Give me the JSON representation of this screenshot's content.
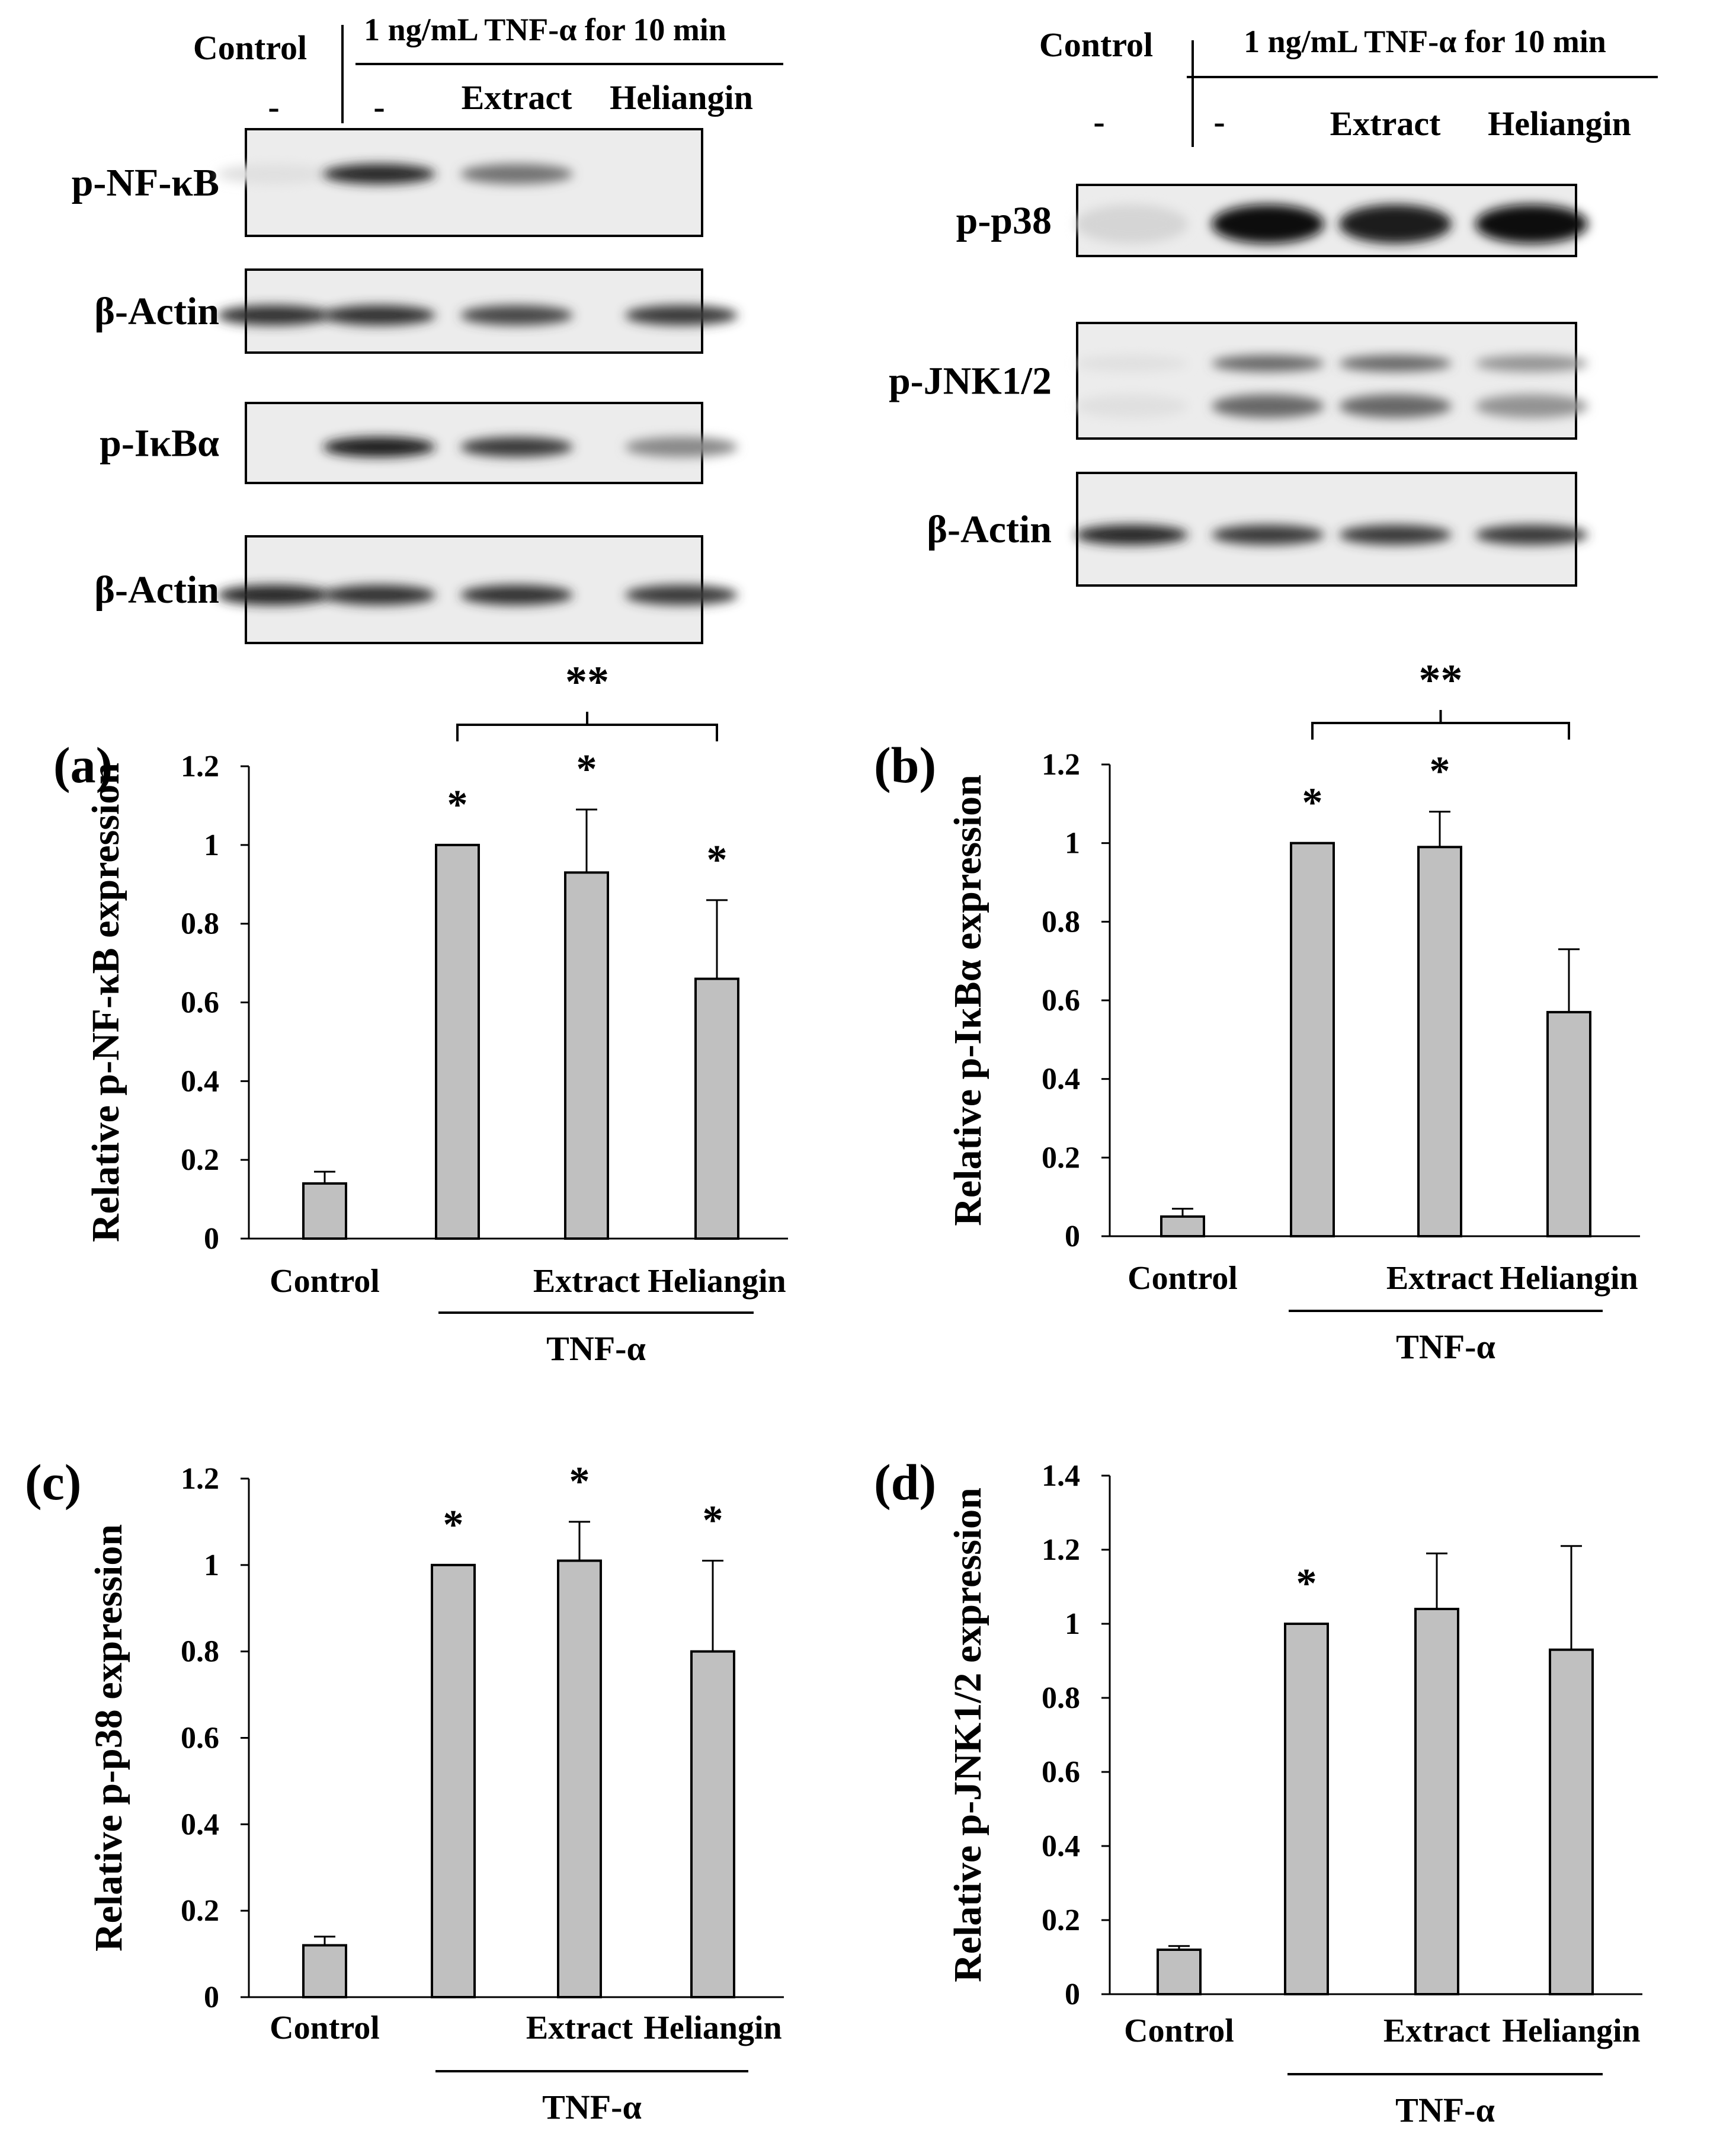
{
  "blots": {
    "left": {
      "group_header": {
        "control": "Control",
        "treatment": "1 ng/mL TNF-α for 10 min"
      },
      "lane_labels": [
        "-",
        "-",
        "Extract",
        "Heliangin"
      ],
      "rows": [
        {
          "label": "p-NF-κB",
          "bands": [
            0.05,
            0.9,
            0.55,
            0.0
          ],
          "style": "upper"
        },
        {
          "label": "β-Actin",
          "bands": [
            0.85,
            0.85,
            0.75,
            0.8
          ],
          "style": "mid"
        },
        {
          "label": "p-IκBα",
          "bands": [
            0.0,
            0.95,
            0.8,
            0.45
          ],
          "style": "mid"
        },
        {
          "label": "β-Actin",
          "bands": [
            0.9,
            0.85,
            0.85,
            0.8
          ],
          "style": "mid"
        }
      ]
    },
    "right": {
      "group_header": {
        "control": "Control",
        "treatment": "1 ng/mL TNF-α for 10 min"
      },
      "lane_labels": [
        "-",
        "-",
        "Extract",
        "Heliangin"
      ],
      "rows": [
        {
          "label": "p-p38",
          "bands": [
            0.1,
            1.0,
            0.95,
            1.0
          ],
          "style": "full"
        },
        {
          "label": "p-JNK1/2",
          "bands": [
            0.05,
            0.6,
            0.6,
            0.4
          ],
          "style": "double"
        },
        {
          "label": "β-Actin",
          "bands": [
            0.9,
            0.8,
            0.8,
            0.8
          ],
          "style": "mid"
        }
      ]
    }
  },
  "chart_data": [
    {
      "type": "bar",
      "panel_label": "(a)",
      "ylabel": "Relative p-NF-κB expression",
      "categories": [
        "Control",
        "",
        "Extract",
        "Heliangin"
      ],
      "values": [
        0.14,
        1.0,
        0.93,
        0.66
      ],
      "errors": [
        0.03,
        0.0,
        0.16,
        0.2
      ],
      "stars": [
        "",
        "*",
        "*",
        "*"
      ],
      "bracket": {
        "from": 1,
        "to": 3,
        "label": "**"
      },
      "group_label": "TNF-α",
      "ylim": [
        0,
        1.2
      ],
      "yticks": [
        "0",
        "0.2",
        "0.4",
        "0.6",
        "0.8",
        "1",
        "1.2"
      ],
      "bar_color": "#c0c0c0"
    },
    {
      "type": "bar",
      "panel_label": "(b)",
      "ylabel": "Relative p-IκBα expression",
      "categories": [
        "Control",
        "",
        "Extract",
        "Heliangin"
      ],
      "values": [
        0.05,
        1.0,
        0.99,
        0.57
      ],
      "errors": [
        0.02,
        0.0,
        0.09,
        0.16
      ],
      "stars": [
        "",
        "*",
        "*",
        ""
      ],
      "bracket": {
        "from": 1,
        "to": 3,
        "label": "**"
      },
      "group_label": "TNF-α",
      "ylim": [
        0,
        1.2
      ],
      "yticks": [
        "0",
        "0.2",
        "0.4",
        "0.6",
        "0.8",
        "1",
        "1.2"
      ],
      "bar_color": "#c0c0c0"
    },
    {
      "type": "bar",
      "panel_label": "(c)",
      "ylabel": "Relative p-p38 expression",
      "categories": [
        "Control",
        "",
        "Extract",
        "Heliangin"
      ],
      "values": [
        0.12,
        1.0,
        1.01,
        0.8
      ],
      "errors": [
        0.02,
        0.0,
        0.09,
        0.21
      ],
      "stars": [
        "",
        "*",
        "*",
        "*"
      ],
      "bracket": null,
      "group_label": "TNF-α",
      "ylim": [
        0,
        1.2
      ],
      "yticks": [
        "0",
        "0.2",
        "0.4",
        "0.6",
        "0.8",
        "1",
        "1.2"
      ],
      "bar_color": "#c0c0c0"
    },
    {
      "type": "bar",
      "panel_label": "(d)",
      "ylabel": "Relative p-JNK1/2 expression",
      "categories": [
        "Control",
        "",
        "Extract",
        "Heliangin"
      ],
      "values": [
        0.12,
        1.0,
        1.04,
        0.93
      ],
      "errors": [
        0.01,
        0.0,
        0.15,
        0.28
      ],
      "stars": [
        "",
        "*",
        "",
        ""
      ],
      "bracket": null,
      "group_label": "TNF-α",
      "ylim": [
        0,
        1.4
      ],
      "yticks": [
        "0",
        "0.2",
        "0.4",
        "0.6",
        "0.8",
        "1",
        "1.2",
        "1.4"
      ],
      "bar_color": "#c0c0c0"
    }
  ]
}
